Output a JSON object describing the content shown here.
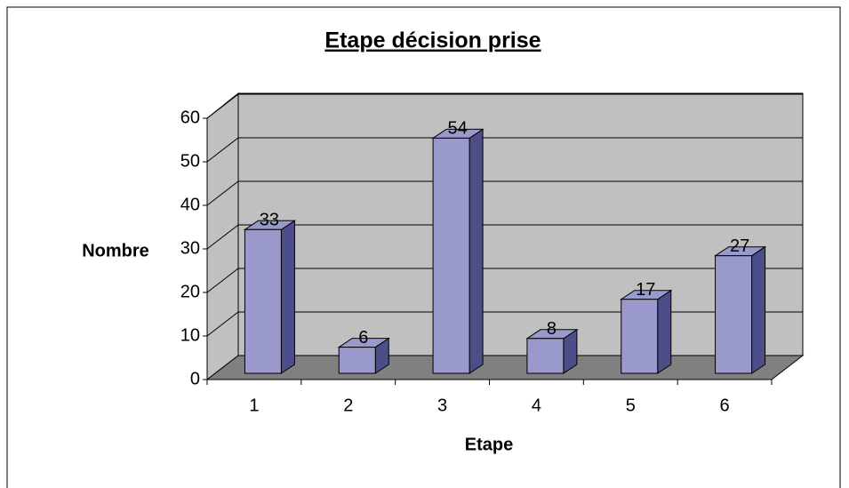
{
  "chart_data": {
    "type": "bar3d",
    "title": "Etape décision prise",
    "x_label": "Etape",
    "y_label": "Nombre",
    "categories": [
      "1",
      "2",
      "3",
      "4",
      "5",
      "6"
    ],
    "values": [
      33,
      6,
      54,
      8,
      17,
      27
    ],
    "color": "#9999cc",
    "side_color": "#4d4d8a",
    "ylim": [
      0,
      60
    ],
    "yticks": [
      0,
      10,
      20,
      30,
      40,
      50,
      60
    ],
    "grid": true
  }
}
